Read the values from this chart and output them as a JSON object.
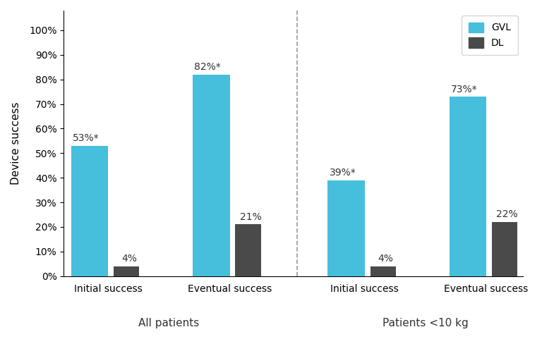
{
  "groups": [
    {
      "label": "All patients",
      "categories": [
        "Initial success",
        "Eventual success"
      ],
      "gvl_values": [
        53,
        82
      ],
      "dl_values": [
        4,
        21
      ],
      "gvl_labels": [
        "53%*",
        "82%*"
      ],
      "dl_labels": [
        "4%",
        "21%"
      ]
    },
    {
      "label": "Patients <10 kg",
      "categories": [
        "Initial success",
        "Eventual success"
      ],
      "gvl_values": [
        39,
        73
      ],
      "dl_values": [
        4,
        22
      ],
      "gvl_labels": [
        "39%*",
        "73%*"
      ],
      "dl_labels": [
        "4%",
        "22%"
      ]
    }
  ],
  "gvl_color": "#45BFDB",
  "dl_color": "#4A4A4A",
  "ylabel": "Device success",
  "ylim": [
    0,
    100
  ],
  "yticks": [
    0,
    10,
    20,
    30,
    40,
    50,
    60,
    70,
    80,
    90,
    100
  ],
  "ytick_labels": [
    "0%",
    "10%",
    "20%",
    "30%",
    "40%",
    "50%",
    "60%",
    "70%",
    "80%",
    "90%",
    "100%"
  ],
  "legend_labels": [
    "GVL",
    "DL"
  ],
  "gvl_bar_width": 0.55,
  "dl_bar_width": 0.38,
  "divider_color": "#999999",
  "background_color": "#ffffff",
  "tick_fontsize": 10,
  "ylabel_fontsize": 11,
  "group_label_fontsize": 11,
  "bar_label_fontsize": 10,
  "cat_label_fontsize": 10
}
